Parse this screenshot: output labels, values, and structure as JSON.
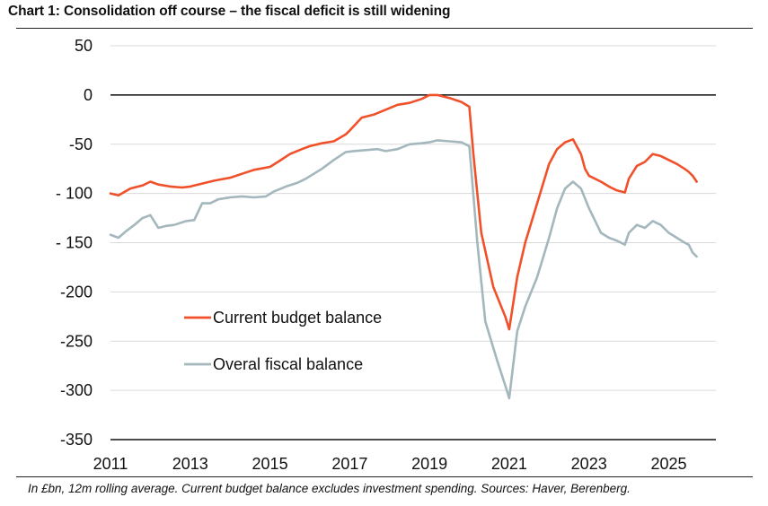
{
  "title": "Chart 1: Consolidation off course – the fiscal deficit is still widening",
  "source": "In £bn, 12m rolling average. Current budget balance excludes investment spending. Sources: Haver, Berenberg.",
  "chart_data": {
    "type": "line",
    "title": "Chart 1: Consolidation off course – the fiscal deficit is still widening",
    "xlabel": "",
    "ylabel": "",
    "xlim": [
      2011.0,
      2025.8
    ],
    "ylim": [
      -350,
      50
    ],
    "yticks": [
      50,
      0,
      -50,
      -100,
      -150,
      -200,
      -250,
      -300,
      -350
    ],
    "ytick_labels": [
      "50",
      "0",
      "-50",
      "- 100",
      "- 150",
      "-200",
      "-250",
      "-300",
      "-350"
    ],
    "xticks": [
      2011,
      2013,
      2015,
      2017,
      2019,
      2021,
      2023,
      2025
    ],
    "xtick_labels": [
      "2011",
      "2013",
      "2015",
      "2017",
      "2019",
      "2021",
      "2023",
      "2025"
    ],
    "grid": "horizontal",
    "legend_position": "center-left",
    "series": [
      {
        "name": "Current budget balance",
        "color": "#f0502a",
        "x": [
          2011.0,
          2011.2,
          2011.5,
          2011.8,
          2012.0,
          2012.2,
          2012.5,
          2012.8,
          2013.0,
          2013.3,
          2013.6,
          2014.0,
          2014.3,
          2014.6,
          2015.0,
          2015.2,
          2015.5,
          2015.8,
          2016.0,
          2016.3,
          2016.6,
          2016.9,
          2017.0,
          2017.3,
          2017.6,
          2017.9,
          2018.2,
          2018.5,
          2018.8,
          2019.0,
          2019.2,
          2019.5,
          2019.8,
          2020.0,
          2020.1,
          2020.3,
          2020.6,
          2020.9,
          2021.0,
          2021.2,
          2021.4,
          2021.7,
          2022.0,
          2022.2,
          2022.4,
          2022.6,
          2022.8,
          2022.9,
          2023.0,
          2023.3,
          2023.5,
          2023.7,
          2023.9,
          2024.0,
          2024.2,
          2024.4,
          2024.6,
          2024.8,
          2025.0,
          2025.2,
          2025.4,
          2025.5,
          2025.6,
          2025.7
        ],
        "y": [
          -100,
          -102,
          -95,
          -92,
          -88,
          -91,
          -93,
          -94,
          -93,
          -90,
          -87,
          -84,
          -80,
          -76,
          -73,
          -68,
          -60,
          -55,
          -52,
          -49,
          -47,
          -40,
          -36,
          -23,
          -20,
          -15,
          -10,
          -8,
          -4,
          0,
          0,
          -3,
          -7,
          -12,
          -60,
          -140,
          -195,
          -225,
          -238,
          -185,
          -150,
          -110,
          -70,
          -55,
          -48,
          -45,
          -60,
          -75,
          -82,
          -88,
          -93,
          -97,
          -99,
          -85,
          -72,
          -68,
          -60,
          -62,
          -66,
          -70,
          -75,
          -78,
          -82,
          -88
        ]
      },
      {
        "name": "Overal fiscal balance",
        "color": "#a3b7bd",
        "x": [
          2011.0,
          2011.2,
          2011.4,
          2011.6,
          2011.8,
          2012.0,
          2012.2,
          2012.4,
          2012.6,
          2012.9,
          2013.1,
          2013.3,
          2013.5,
          2013.7,
          2014.0,
          2014.3,
          2014.6,
          2014.9,
          2015.1,
          2015.4,
          2015.7,
          2015.9,
          2016.1,
          2016.3,
          2016.6,
          2016.9,
          2017.1,
          2017.4,
          2017.7,
          2017.9,
          2018.2,
          2018.5,
          2018.8,
          2019.0,
          2019.2,
          2019.5,
          2019.8,
          2020.0,
          2020.2,
          2020.4,
          2020.7,
          2020.9,
          2021.0,
          2021.2,
          2021.4,
          2021.7,
          2022.0,
          2022.2,
          2022.4,
          2022.6,
          2022.8,
          2023.0,
          2023.3,
          2023.5,
          2023.7,
          2023.9,
          2024.0,
          2024.2,
          2024.4,
          2024.6,
          2024.8,
          2025.0,
          2025.2,
          2025.4,
          2025.5,
          2025.6,
          2025.7
        ],
        "y": [
          -142,
          -145,
          -138,
          -132,
          -125,
          -122,
          -135,
          -133,
          -132,
          -128,
          -127,
          -110,
          -110,
          -106,
          -104,
          -103,
          -104,
          -103,
          -98,
          -93,
          -89,
          -85,
          -80,
          -75,
          -66,
          -58,
          -57,
          -56,
          -55,
          -57,
          -55,
          -50,
          -49,
          -48,
          -46,
          -47,
          -48,
          -52,
          -150,
          -230,
          -270,
          -295,
          -308,
          -240,
          -215,
          -185,
          -145,
          -115,
          -95,
          -88,
          -95,
          -115,
          -140,
          -145,
          -148,
          -152,
          -140,
          -132,
          -135,
          -128,
          -132,
          -140,
          -145,
          -150,
          -152,
          -160,
          -164
        ]
      }
    ]
  }
}
